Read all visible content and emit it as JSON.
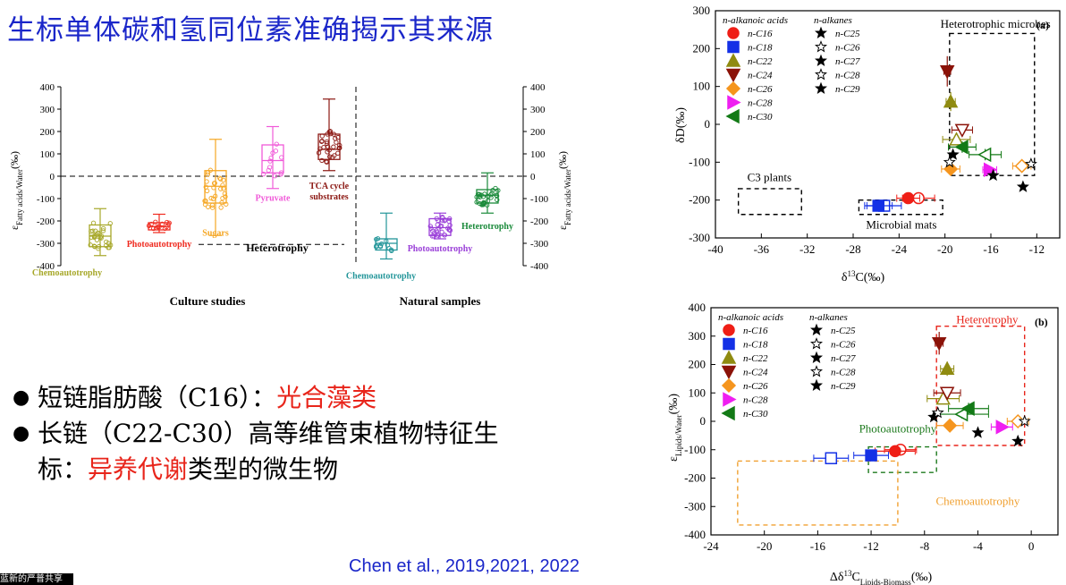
{
  "title": "生标单体碳和氢同位素准确揭示其来源",
  "bullets": [
    {
      "parts": [
        {
          "text": "短链脂肪酸（C16）：",
          "color": "black"
        },
        {
          "text": "光合藻类",
          "color": "red"
        }
      ]
    },
    {
      "parts": [
        {
          "text": "长链（C22-C30）高等维管束植物特征生",
          "color": "black"
        }
      ]
    },
    {
      "parts": [
        {
          "text": "标：",
          "color": "black"
        },
        {
          "text": "异养代谢",
          "color": "red"
        },
        {
          "text": "类型的微生物",
          "color": "black"
        }
      ]
    }
  ],
  "citation": "Chen et al., 2019,2021, 2022",
  "corner_text": "蓝新的严普共享",
  "colors": {
    "title": "#1a26c9",
    "red": "#e8251b",
    "c16": "#ef1e16",
    "c18": "#1431e6",
    "c22": "#8f8b10",
    "c24": "#8b1208",
    "c26": "#f5951e",
    "c28": "#ef1ff1",
    "c30": "#137a16"
  },
  "chart_data": [
    {
      "type": "box",
      "ylabel_left": "εFatty acids/Water(‰)",
      "ylabel_right": "εFatty acids/Water(‰)",
      "ylim": [
        -400,
        400
      ],
      "yticks": [
        "400",
        "300",
        "200",
        "100",
        "0",
        "-100",
        "-200",
        "-300",
        "-400"
      ],
      "groups": [
        {
          "label": "Culture studies"
        },
        {
          "label": "Natural samples"
        }
      ],
      "group_labels": {
        "heterotrophy": "Heterotrophy"
      },
      "boxes": [
        {
          "label": "Chemoautotrophy",
          "color": "#a7a82a",
          "min": -355,
          "q1": -315,
          "median": -268,
          "q3": -218,
          "max": -145
        },
        {
          "label": "Photoautotrophy",
          "color": "#ef2a1f",
          "min": -252,
          "q1": -240,
          "median": -225,
          "q3": -208,
          "max": -170
        },
        {
          "label": "Sugars",
          "color": "#f5a623",
          "min": -265,
          "q1": -120,
          "median": -45,
          "q3": 25,
          "max": 165
        },
        {
          "label": "Pyruvate",
          "color": "#f05ad8",
          "min": -55,
          "q1": 15,
          "median": 70,
          "q3": 140,
          "max": 222
        },
        {
          "label": "TCA cycle substrates",
          "color": "#8b1712",
          "min": 25,
          "q1": 75,
          "median": 120,
          "q3": 188,
          "max": 345
        },
        {
          "label": "Chemoautotrophy",
          "color": "#229599",
          "min": -370,
          "q1": -330,
          "median": -300,
          "q3": -280,
          "max": -165
        },
        {
          "label": "Photoautotrophy",
          "color": "#9a3fd8",
          "min": -280,
          "q1": -265,
          "median": -230,
          "q3": -190,
          "max": -165
        },
        {
          "label": "Heterotrophy",
          "color": "#1a8a3a",
          "min": -165,
          "q1": -120,
          "median": -85,
          "q3": -60,
          "max": 15
        }
      ]
    },
    {
      "type": "scatter",
      "panel": "(a)",
      "xlabel": "δ13C(‰)",
      "ylabel": "δD(‰)",
      "xlim": [
        -40,
        -10
      ],
      "ylim": [
        -300,
        300
      ],
      "xticks": [
        "-40",
        "-36",
        "-32",
        "-28",
        "-24",
        "-20",
        "-16",
        "-12"
      ],
      "yticks": [
        "300",
        "200",
        "100",
        "0",
        "-100",
        "-200",
        "-300"
      ],
      "legend_header_acids": "n-alkanoic acids",
      "legend_header_alkanes": "n-alkanes",
      "legend_acids": [
        "n-C16",
        "n-C18",
        "n-C22",
        "n-C24",
        "n-C26",
        "n-C28",
        "n-C30"
      ],
      "legend_alkanes": [
        "n-C25",
        "n-C26",
        "n-C27",
        "n-C28",
        "n-C29"
      ],
      "region_labels": [
        "Heterotrophic microbes",
        "C3 plants",
        "Microbial mats"
      ],
      "acid_points": [
        {
          "x": -23.2,
          "y": -195,
          "xerr": 1.0,
          "yerr": 8
        },
        {
          "x": -25.8,
          "y": -215,
          "xerr": 1.2,
          "yerr": 8
        },
        {
          "x": -19.5,
          "y": 60,
          "xerr": 0.4,
          "yerr": 25
        },
        {
          "x": -19.8,
          "y": 140,
          "xerr": 0.3,
          "yerr": 40
        },
        {
          "x": -19.5,
          "y": -118,
          "xerr": 0.8,
          "yerr": 10
        },
        {
          "x": -16.1,
          "y": -120,
          "xerr": 0.6,
          "yerr": 10
        },
        {
          "x": -18.5,
          "y": -60,
          "xerr": 1.2,
          "yerr": 15
        }
      ],
      "acid_points_open": [
        {
          "x": -22.3,
          "y": -195,
          "xerr": 1.4,
          "yerr": 15
        },
        {
          "x": -25.3,
          "y": -215,
          "xerr": 1.5,
          "yerr": 10
        },
        {
          "x": -19.0,
          "y": -40,
          "xerr": 1.2,
          "yerr": 15
        },
        {
          "x": -18.5,
          "y": -15,
          "xerr": 0.9,
          "yerr": 15
        },
        {
          "x": -13.3,
          "y": -110,
          "xerr": 0.8,
          "yerr": 8
        },
        {
          "x": -16.5,
          "y": -80,
          "xerr": 1.4,
          "yerr": 15
        }
      ],
      "alkane_points": [
        {
          "x": -19.3,
          "y": -80
        },
        {
          "x": -19.6,
          "y": -100
        },
        {
          "x": -15.8,
          "y": -135
        },
        {
          "x": -12.5,
          "y": -105
        },
        {
          "x": -13.2,
          "y": -165
        }
      ]
    },
    {
      "type": "scatter",
      "panel": "(b)",
      "xlabel": "Δδ13C Lipids-Biomass(‰)",
      "ylabel": "εLipids/Water(‰)",
      "xlim": [
        -24,
        2
      ],
      "ylim": [
        -400,
        400
      ],
      "xticks": [
        "-24",
        "-20",
        "-16",
        "-12",
        "-8",
        "-4",
        "0"
      ],
      "yticks": [
        "400",
        "300",
        "200",
        "100",
        "0",
        "-100",
        "-200",
        "-300",
        "-400"
      ],
      "legend_header_acids": "n-alkanoic acids",
      "legend_header_alkanes": "n-alkanes",
      "legend_acids": [
        "n-C16",
        "n-C18",
        "n-C22",
        "n-C24",
        "n-C26",
        "n-C28",
        "n-C30"
      ],
      "legend_alkanes": [
        "n-C25",
        "n-C26",
        "n-C27",
        "n-C28",
        "n-C29"
      ],
      "region_labels": [
        "Heterotrophy",
        "Photoautotrophy",
        "Chemoautotrophy"
      ],
      "acid_points": [
        {
          "x": -10.2,
          "y": -105,
          "xerr": 1.5,
          "yerr": 8
        },
        {
          "x": -12.0,
          "y": -120,
          "xerr": 1.3,
          "yerr": 8
        },
        {
          "x": -6.3,
          "y": 185,
          "xerr": 0.5,
          "yerr": 25
        },
        {
          "x": -6.9,
          "y": 275,
          "xerr": 0.3,
          "yerr": 40
        },
        {
          "x": -6.1,
          "y": -15,
          "xerr": 1.0,
          "yerr": 10
        },
        {
          "x": -2.2,
          "y": -20,
          "xerr": 0.8,
          "yerr": 10
        },
        {
          "x": -4.7,
          "y": 45,
          "xerr": 1.5,
          "yerr": 20
        }
      ],
      "acid_points_open": [
        {
          "x": -9.8,
          "y": -100,
          "xerr": 1.2,
          "yerr": 8
        },
        {
          "x": -15.0,
          "y": -130,
          "xerr": 1.3,
          "yerr": 8
        },
        {
          "x": -6.6,
          "y": 80,
          "xerr": 1.2,
          "yerr": 20
        },
        {
          "x": -6.3,
          "y": 100,
          "xerr": 1.0,
          "yerr": 18
        },
        {
          "x": -1.0,
          "y": 0,
          "xerr": 0.8,
          "yerr": 10
        },
        {
          "x": -5.2,
          "y": 25,
          "xerr": 2.0,
          "yerr": 15
        }
      ],
      "alkane_points": [
        {
          "x": -7.3,
          "y": 15
        },
        {
          "x": -7.0,
          "y": 30
        },
        {
          "x": -4.0,
          "y": -40
        },
        {
          "x": -0.5,
          "y": 0
        },
        {
          "x": -1.0,
          "y": -70
        }
      ]
    }
  ]
}
